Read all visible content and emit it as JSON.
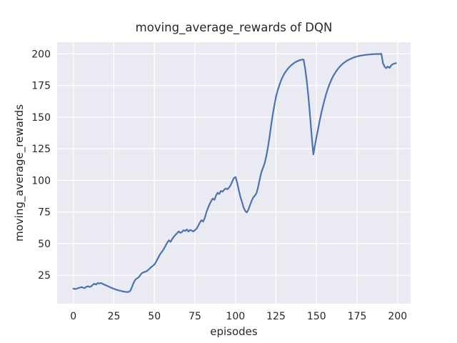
{
  "chart_data": {
    "type": "line",
    "title": "moving_average_rewards of DQN",
    "xlabel": "episodes",
    "ylabel": "moving_average_rewards",
    "x_ticks": [
      0,
      25,
      50,
      75,
      100,
      125,
      150,
      175,
      200
    ],
    "y_ticks": [
      25,
      50,
      75,
      100,
      125,
      150,
      175,
      200
    ],
    "xlim": [
      -10,
      208
    ],
    "ylim": [
      2.5,
      209.2
    ],
    "grid": true,
    "legend": "none",
    "series": [
      {
        "name": "moving_average_rewards",
        "x_start": 0,
        "x_step": 1,
        "values": [
          14.5,
          14.0,
          14.3,
          14.8,
          15.2,
          15.6,
          15.2,
          14.8,
          15.8,
          16.3,
          15.8,
          16.1,
          17.5,
          18.3,
          17.6,
          18.9,
          18.4,
          18.9,
          18.3,
          17.6,
          17.1,
          16.5,
          15.9,
          15.3,
          14.8,
          14.3,
          13.8,
          13.4,
          13.0,
          12.7,
          12.4,
          12.1,
          11.9,
          11.7,
          11.8,
          12.5,
          15.0,
          18.5,
          21.0,
          22.4,
          23.0,
          24.5,
          26.3,
          27.2,
          27.6,
          28.0,
          29.0,
          30.2,
          31.4,
          32.4,
          33.5,
          35.5,
          38.0,
          40.5,
          42.5,
          44.2,
          46.2,
          48.6,
          51.0,
          52.6,
          51.4,
          53.6,
          55.5,
          57.0,
          58.2,
          59.6,
          58.5,
          59.2,
          60.6,
          60.0,
          61.2,
          59.6,
          60.8,
          60.2,
          59.6,
          60.6,
          61.8,
          64.0,
          66.5,
          68.5,
          67.4,
          70.0,
          74.5,
          78.0,
          81.0,
          83.6,
          85.6,
          84.6,
          88.0,
          90.2,
          89.2,
          91.6,
          91.0,
          92.6,
          93.6,
          93.0,
          94.2,
          96.2,
          99.0,
          101.8,
          102.6,
          98.5,
          92.5,
          87.0,
          83.0,
          78.5,
          75.8,
          74.6,
          77.0,
          80.5,
          84.0,
          86.5,
          88.0,
          90.0,
          95.0,
          101.0,
          106.5,
          110.0,
          113.5,
          119.0,
          126.0,
          134.5,
          143.5,
          152.0,
          159.5,
          166.0,
          171.0,
          175.0,
          178.5,
          181.5,
          184.0,
          186.0,
          187.7,
          189.2,
          190.5,
          191.6,
          192.6,
          193.4,
          194.1,
          194.7,
          195.1,
          195.4,
          195.5,
          188.0,
          178.0,
          166.0,
          151.0,
          135.0,
          120.5,
          127.5,
          134.5,
          141.0,
          147.5,
          153.5,
          159.0,
          164.0,
          168.5,
          172.5,
          176.0,
          179.0,
          181.7,
          184.0,
          186.0,
          187.8,
          189.4,
          190.8,
          192.0,
          193.0,
          193.9,
          194.7,
          195.4,
          196.0,
          196.6,
          197.1,
          197.5,
          197.9,
          198.2,
          198.5,
          198.7,
          198.9,
          199.1,
          199.25,
          199.4,
          199.5,
          199.6,
          199.7,
          199.75,
          199.8,
          199.85,
          199.9,
          199.95,
          192.5,
          189.8,
          188.7,
          190.0,
          188.8,
          190.8,
          191.8,
          192.3,
          192.6
        ]
      }
    ],
    "colors": {
      "line": "#4c72b0",
      "plot_background": "#eaeaf2",
      "grid": "#ffffff",
      "text": "#262626",
      "figure_background": "#ffffff"
    }
  }
}
